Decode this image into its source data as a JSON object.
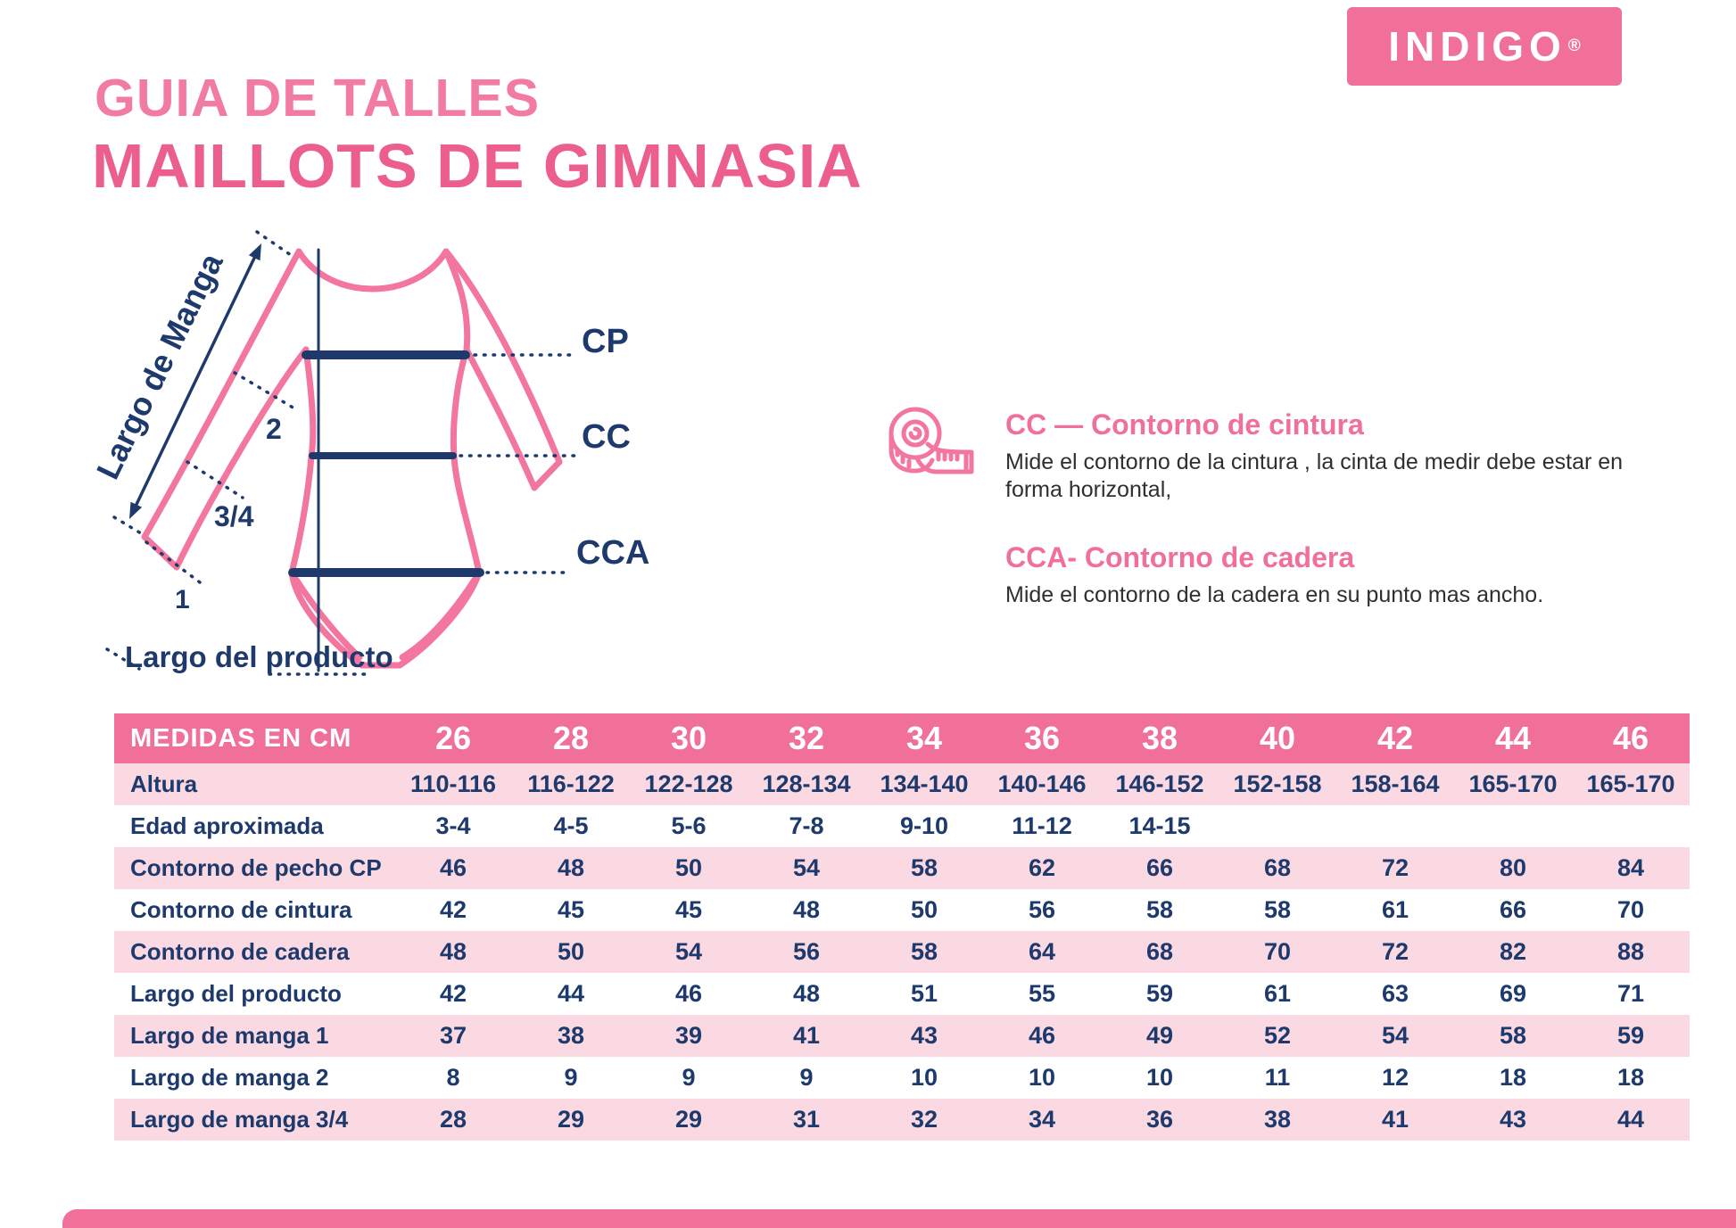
{
  "brand": {
    "name": "INDIGO",
    "registered": "®"
  },
  "header": {
    "title_line1": "GUIA DE TALLES",
    "title_line2": "MAILLOTS DE GIMNASIA"
  },
  "diagram": {
    "sleeve_length_label": "Largo de Manga",
    "mark_full": "1",
    "mark_short": "2",
    "mark_three_quarter": "3/4",
    "chest_line_label": "CP",
    "waist_line_label": "CC",
    "hip_line_label": "CCA",
    "product_length_label": "Largo del producto"
  },
  "legend": {
    "waist": {
      "title": "CC — Contorno de cintura",
      "description": "Mide el contorno de la cintura , la cinta de medir debe estar en forma horizontal,"
    },
    "hip": {
      "title": "CCA- Contorno de cadera",
      "description": "Mide el contorno de la cadera en su punto mas ancho."
    }
  },
  "table": {
    "header_label": "MEDIDAS EN CM",
    "sizes": [
      "26",
      "28",
      "30",
      "32",
      "34",
      "36",
      "38",
      "40",
      "42",
      "44",
      "46"
    ],
    "rows": [
      {
        "label": "Altura",
        "values": [
          "110-116",
          "116-122",
          "122-128",
          "128-134",
          "134-140",
          "140-146",
          "146-152",
          "152-158",
          "158-164",
          "165-170",
          "165-170"
        ]
      },
      {
        "label": "Edad aproximada",
        "values": [
          "3-4",
          "4-5",
          "5-6",
          "7-8",
          "9-10",
          "11-12",
          "14-15",
          "",
          "",
          "",
          ""
        ]
      },
      {
        "label": "Contorno de pecho CP",
        "values": [
          "46",
          "48",
          "50",
          "54",
          "58",
          "62",
          "66",
          "68",
          "72",
          "80",
          "84"
        ]
      },
      {
        "label": "Contorno de cintura",
        "values": [
          "42",
          "45",
          "45",
          "48",
          "50",
          "56",
          "58",
          "58",
          "61",
          "66",
          "70"
        ]
      },
      {
        "label": "Contorno de cadera",
        "values": [
          "48",
          "50",
          "54",
          "56",
          "58",
          "64",
          "68",
          "70",
          "72",
          "82",
          "88"
        ]
      },
      {
        "label": "Largo del producto",
        "values": [
          "42",
          "44",
          "46",
          "48",
          "51",
          "55",
          "59",
          "61",
          "63",
          "69",
          "71"
        ]
      },
      {
        "label": "Largo de manga 1",
        "values": [
          "37",
          "38",
          "39",
          "41",
          "43",
          "46",
          "49",
          "52",
          "54",
          "58",
          "59"
        ]
      },
      {
        "label": "Largo de manga 2",
        "values": [
          "8",
          "9",
          "9",
          "9",
          "10",
          "10",
          "10",
          "11",
          "12",
          "18",
          "18"
        ]
      },
      {
        "label": "Largo de manga 3/4",
        "values": [
          "28",
          "29",
          "29",
          "31",
          "32",
          "34",
          "36",
          "38",
          "41",
          "43",
          "44"
        ]
      }
    ]
  },
  "colors": {
    "brand_pink": "#F0709A",
    "title_pink": "#EC5F8C",
    "navy": "#1E3A6D",
    "row_pink": "#FBD9E3",
    "text_dark": "#2F2F2F",
    "white": "#FFFFFF"
  }
}
